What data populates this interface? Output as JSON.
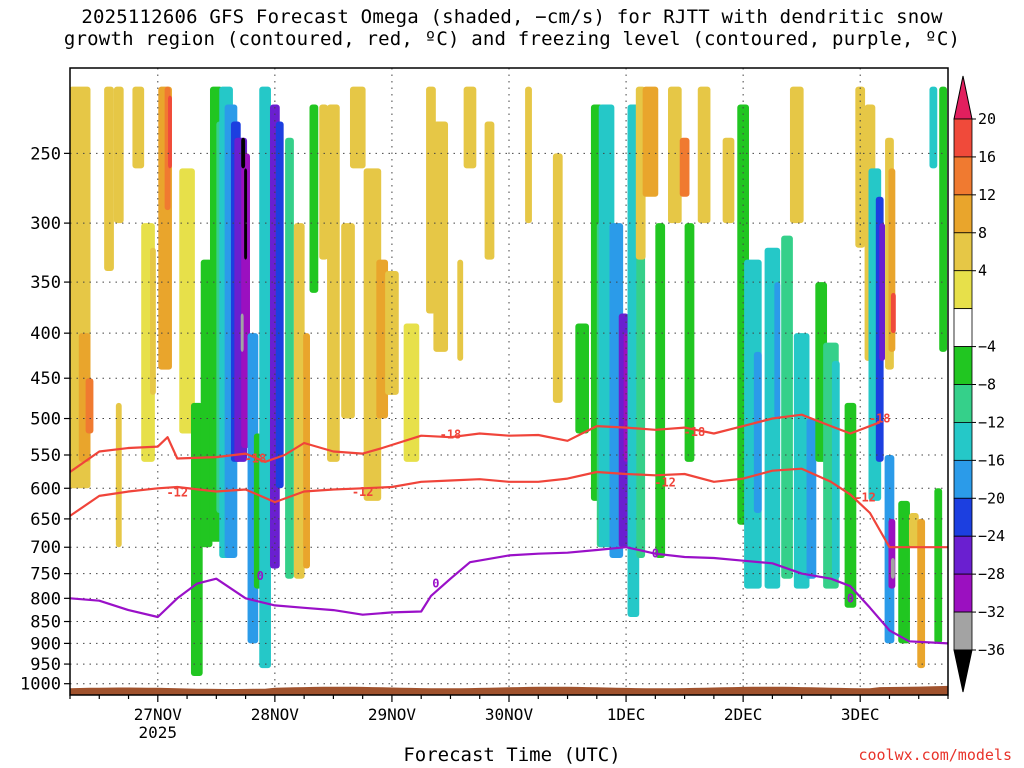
{
  "title_lines": [
    "2025112606 GFS Forecast Omega (shaded, −cm/s) for RJTT with dendritic snow",
    "growth region (contoured, red, ºC) and freezing level (contoured, purple, ºC)"
  ],
  "credit": "coolwx.com/models",
  "chart_data": {
    "type": "heatmap",
    "title": "2025112606 GFS Forecast Omega (shaded, −cm/s) for RJTT with dendritic snow growth region (contoured, red, ºC) and freezing level (contoured, purple, ºC)",
    "xlabel": "Forecast Time (UTC)",
    "ylabel": "",
    "x_ticks": [
      {
        "label": "27NOV",
        "sub": "2025",
        "hour": 18
      },
      {
        "label": "28NOV",
        "hour": 42
      },
      {
        "label": "29NOV",
        "hour": 66
      },
      {
        "label": "30NOV",
        "hour": 90
      },
      {
        "label": "1DEC",
        "hour": 114
      },
      {
        "label": "2DEC",
        "hour": 138
      },
      {
        "label": "3DEC",
        "hour": 162
      }
    ],
    "x_range_hours": [
      0,
      180
    ],
    "y_ticks": [
      250,
      300,
      350,
      400,
      450,
      500,
      550,
      600,
      650,
      700,
      750,
      800,
      850,
      900,
      950,
      1000
    ],
    "y_range_hpa": [
      200,
      1030
    ],
    "y_scale": "log-pressure",
    "grid": true,
    "colorbar": {
      "labels": [
        "20",
        "16",
        "12",
        "8",
        "4",
        "−4",
        "−8",
        "−12",
        "−16",
        "−20",
        "−24",
        "−28",
        "−32",
        "−36"
      ],
      "colors": [
        "#e21f5e",
        "#f04a3a",
        "#f07a30",
        "#e9a52c",
        "#e6c746",
        "#e7e04a",
        "#ffffff",
        "#21c621",
        "#35d08a",
        "#25c8c8",
        "#2b9be9",
        "#1c3fe0",
        "#6a1fd0",
        "#9b10c0",
        "#a3a3a3",
        "#000000"
      ]
    },
    "contours": [
      {
        "name": "dendritic -18",
        "color": "#f0443a",
        "level": "-18",
        "points": [
          [
            0,
            575
          ],
          [
            6,
            545
          ],
          [
            12,
            540
          ],
          [
            18,
            538
          ],
          [
            20,
            525
          ],
          [
            22,
            555
          ],
          [
            30,
            553
          ],
          [
            36,
            548
          ],
          [
            40,
            560
          ],
          [
            44,
            550
          ],
          [
            48,
            533
          ],
          [
            54,
            545
          ],
          [
            60,
            548
          ],
          [
            64,
            540
          ],
          [
            72,
            523
          ],
          [
            78,
            525
          ],
          [
            84,
            520
          ],
          [
            90,
            523
          ],
          [
            96,
            522
          ],
          [
            102,
            530
          ],
          [
            108,
            510
          ],
          [
            114,
            512
          ],
          [
            120,
            515
          ],
          [
            126,
            512
          ],
          [
            132,
            520
          ],
          [
            138,
            510
          ],
          [
            144,
            500
          ],
          [
            150,
            495
          ],
          [
            156,
            510
          ],
          [
            160,
            520
          ],
          [
            166,
            505
          ]
        ],
        "label_at": [
          [
            38,
            555
          ],
          [
            78,
            521
          ],
          [
            128,
            518
          ],
          [
            166,
            500
          ]
        ]
      },
      {
        "name": "dendritic -12",
        "color": "#f0443a",
        "level": "-12",
        "points": [
          [
            0,
            645
          ],
          [
            6,
            612
          ],
          [
            12,
            605
          ],
          [
            18,
            600
          ],
          [
            22,
            598
          ],
          [
            30,
            605
          ],
          [
            36,
            602
          ],
          [
            42,
            622
          ],
          [
            48,
            605
          ],
          [
            54,
            602
          ],
          [
            60,
            600
          ],
          [
            66,
            598
          ],
          [
            72,
            590
          ],
          [
            78,
            588
          ],
          [
            84,
            586
          ],
          [
            90,
            590
          ],
          [
            96,
            590
          ],
          [
            102,
            585
          ],
          [
            108,
            575
          ],
          [
            114,
            578
          ],
          [
            120,
            580
          ],
          [
            126,
            578
          ],
          [
            132,
            590
          ],
          [
            138,
            585
          ],
          [
            144,
            573
          ],
          [
            150,
            570
          ],
          [
            156,
            590
          ],
          [
            160,
            610
          ],
          [
            164,
            640
          ],
          [
            168,
            700
          ],
          [
            174,
            700
          ],
          [
            180,
            700
          ]
        ],
        "label_at": [
          [
            22,
            607
          ],
          [
            60,
            606
          ],
          [
            122,
            591
          ],
          [
            163,
            615
          ]
        ]
      },
      {
        "name": "freezing 0",
        "color": "#9a10c8",
        "level": "0",
        "points": [
          [
            0,
            800
          ],
          [
            6,
            805
          ],
          [
            12,
            825
          ],
          [
            18,
            840
          ],
          [
            22,
            800
          ],
          [
            26,
            770
          ],
          [
            30,
            760
          ],
          [
            36,
            800
          ],
          [
            42,
            815
          ],
          [
            48,
            820
          ],
          [
            54,
            825
          ],
          [
            60,
            835
          ],
          [
            66,
            830
          ],
          [
            72,
            828
          ],
          [
            74,
            795
          ],
          [
            78,
            760
          ],
          [
            82,
            728
          ],
          [
            90,
            715
          ],
          [
            96,
            712
          ],
          [
            102,
            710
          ],
          [
            108,
            705
          ],
          [
            114,
            700
          ],
          [
            120,
            712
          ],
          [
            126,
            718
          ],
          [
            132,
            720
          ],
          [
            138,
            725
          ],
          [
            144,
            730
          ],
          [
            150,
            750
          ],
          [
            156,
            760
          ],
          [
            160,
            775
          ],
          [
            164,
            820
          ],
          [
            168,
            870
          ],
          [
            172,
            895
          ],
          [
            180,
            900
          ]
        ],
        "label_at": [
          [
            39,
            755
          ],
          [
            75,
            770
          ],
          [
            120,
            712
          ],
          [
            160,
            800
          ]
        ]
      }
    ]
  }
}
